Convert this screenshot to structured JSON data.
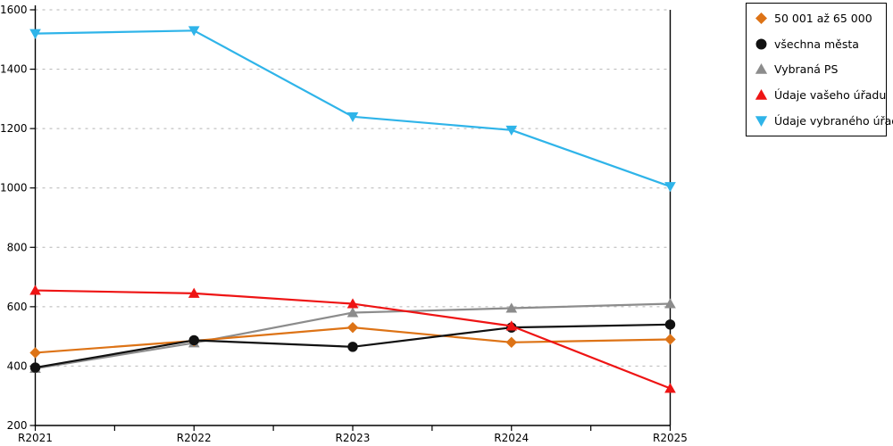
{
  "chart_data": {
    "type": "line",
    "title": "",
    "xlabel": "",
    "ylabel": "",
    "categories": [
      "R2021",
      "R2022",
      "R2023",
      "R2024",
      "R2025"
    ],
    "series": [
      {
        "name": "50 001 až 65 000",
        "marker": "diamond",
        "color": "#DD7316",
        "z": 2,
        "values": [
          445,
          485,
          530,
          480,
          490
        ]
      },
      {
        "name": "všechna města",
        "marker": "circle",
        "color": "#111111",
        "z": 3,
        "values": [
          395,
          487,
          465,
          530,
          540
        ]
      },
      {
        "name": "Vybraná PS",
        "marker": "triangle-up",
        "color": "#8C8C8C",
        "z": 1,
        "values": [
          392,
          478,
          580,
          595,
          610
        ]
      },
      {
        "name": "Údaje vašeho úřadu",
        "marker": "triangle-up",
        "color": "#EE1414",
        "z": 4,
        "values": [
          655,
          645,
          610,
          535,
          325
        ]
      },
      {
        "name": "Údaje vybraného úřadu",
        "marker": "triangle-down",
        "color": "#2FB4E9",
        "z": 5,
        "values": [
          1520,
          1530,
          1240,
          1195,
          1005
        ]
      }
    ],
    "ylim": [
      200,
      1600
    ],
    "ytick_step": 200,
    "y_tick_labels": [
      "200",
      "400",
      "600",
      "800",
      "1000",
      "1200",
      "1400",
      "1600"
    ],
    "grid": "horizontal-dashed",
    "grid_color": "#b5b5b5",
    "axis_color": "#000000",
    "background": "#ffffff",
    "legend_position": "top-right"
  }
}
